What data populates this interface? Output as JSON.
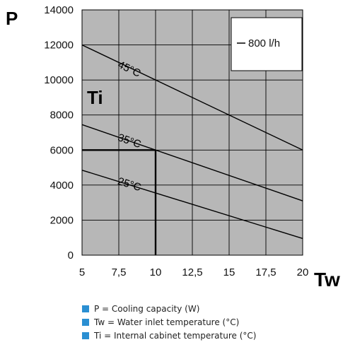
{
  "chart_data": {
    "type": "line",
    "xlabel": "Tw",
    "ylabel": "P",
    "inner_label": "Ti",
    "xlim": [
      5,
      20
    ],
    "ylim": [
      0,
      14000
    ],
    "x_ticks": [
      "5",
      "7,5",
      "10",
      "12,5",
      "15",
      "17,5",
      "20"
    ],
    "y_ticks": [
      "0",
      "2000",
      "4000",
      "6000",
      "8000",
      "10000",
      "12000",
      "14000"
    ],
    "grid": true,
    "background_color": "#b7b7b7",
    "legend": {
      "placement": "top-right",
      "entries": [
        "800 l/h"
      ]
    },
    "series": [
      {
        "name": "45°C",
        "x": [
          5,
          20
        ],
        "y": [
          12000,
          6000
        ]
      },
      {
        "name": "35°C",
        "x": [
          5,
          20
        ],
        "y": [
          7450,
          3100
        ]
      },
      {
        "name": "25°C",
        "x": [
          5,
          20
        ],
        "y": [
          4850,
          950
        ]
      }
    ],
    "example_lines": [
      {
        "x": [
          5,
          10
        ],
        "y": [
          6000,
          6000
        ]
      },
      {
        "x": [
          10,
          10
        ],
        "y": [
          0,
          6000
        ]
      }
    ]
  },
  "notes": {
    "color": "#2a8fd2",
    "items": [
      "P = Cooling capacity (W)",
      "Tw = Water inlet temperature (°C)",
      "Ti = Internal cabinet temperature (°C)"
    ]
  }
}
